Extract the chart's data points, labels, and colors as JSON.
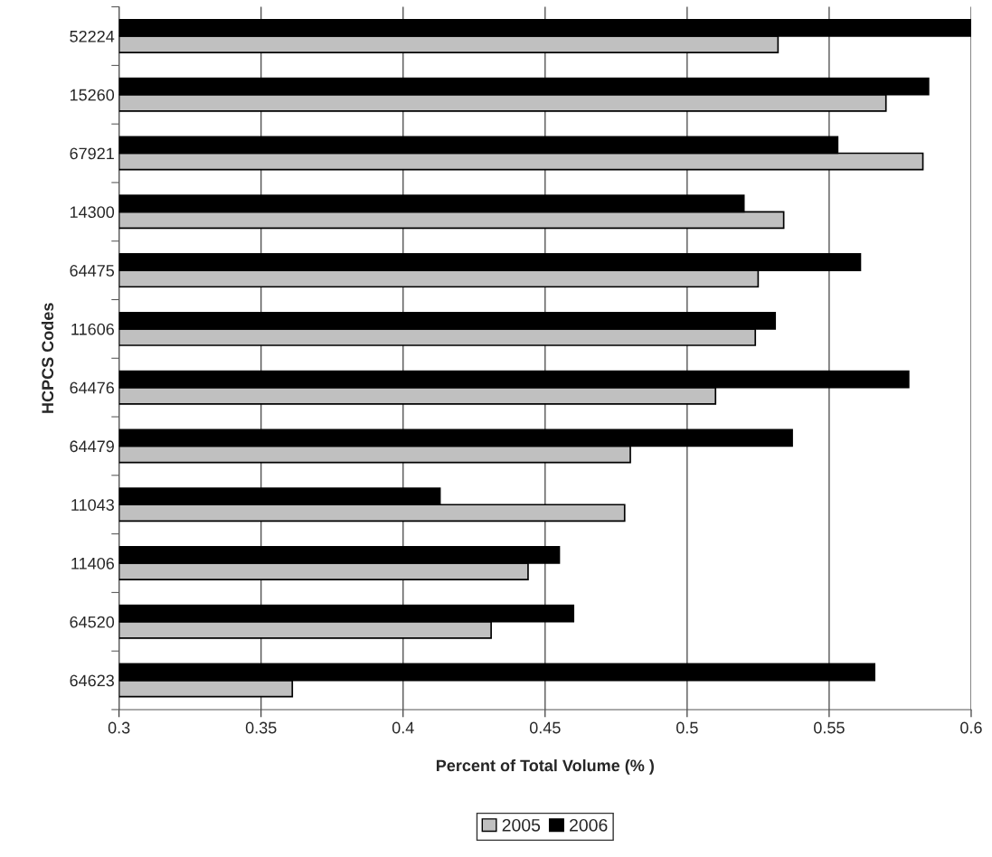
{
  "chart_data": {
    "type": "bar",
    "orientation": "horizontal",
    "xlabel": "Percent of Total Volume (% )",
    "ylabel": "HCPCS Codes",
    "categories": [
      "52224",
      "15260",
      "67921",
      "14300",
      "64475",
      "11606",
      "64476",
      "64479",
      "11043",
      "11406",
      "64520",
      "64623"
    ],
    "series": [
      {
        "name": "2005",
        "color": "#c0c0c0",
        "values": [
          0.532,
          0.57,
          0.583,
          0.534,
          0.525,
          0.524,
          0.51,
          0.48,
          0.478,
          0.444,
          0.431,
          0.361
        ]
      },
      {
        "name": "2006",
        "color": "#000000",
        "values": [
          0.6,
          0.585,
          0.553,
          0.52,
          0.561,
          0.531,
          0.578,
          0.537,
          0.413,
          0.455,
          0.46,
          0.566
        ]
      }
    ],
    "xlim": [
      0.3,
      0.6
    ],
    "xticks": [
      0.3,
      0.35,
      0.4,
      0.45,
      0.5,
      0.55,
      0.6
    ],
    "grid": "x",
    "legend": "bottom"
  }
}
